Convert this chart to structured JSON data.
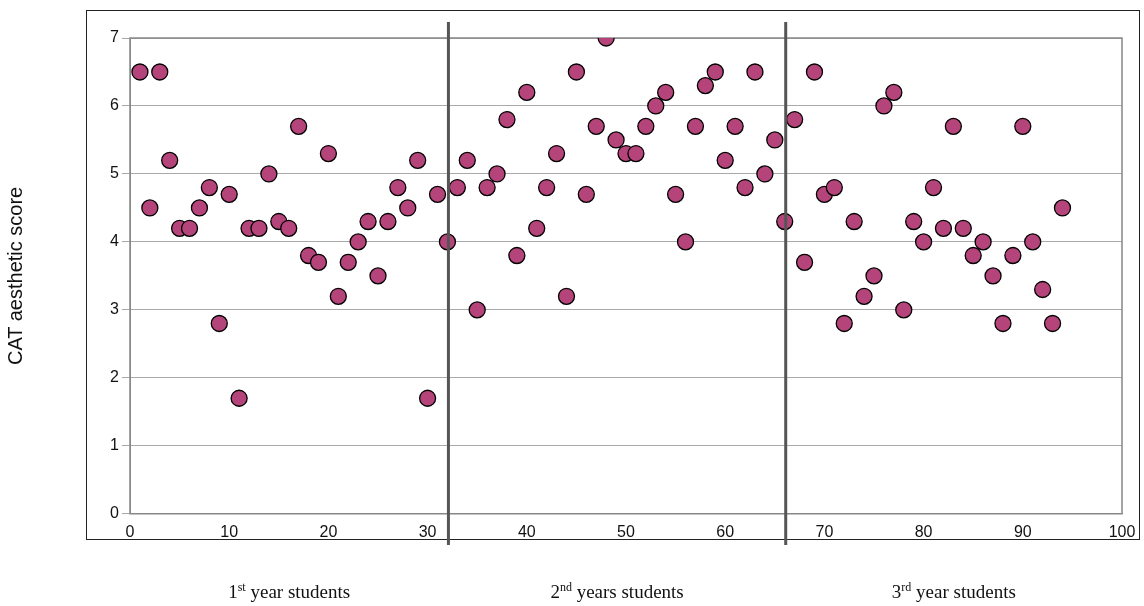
{
  "chart_data": {
    "type": "scatter",
    "ylabel": "CAT aesthetic score",
    "x": [
      1,
      2,
      3,
      4,
      5,
      6,
      7,
      8,
      9,
      10,
      11,
      12,
      13,
      14,
      15,
      16,
      17,
      18,
      19,
      20,
      21,
      22,
      23,
      24,
      25,
      26,
      27,
      28,
      29,
      30,
      31,
      32,
      33,
      34,
      35,
      36,
      37,
      38,
      39,
      40,
      41,
      42,
      43,
      44,
      45,
      46,
      47,
      48,
      49,
      50,
      51,
      52,
      53,
      54,
      55,
      56,
      57,
      58,
      59,
      60,
      61,
      62,
      63,
      64,
      65,
      66,
      67,
      68,
      69,
      70,
      71,
      72,
      73,
      74,
      75,
      76,
      77,
      78,
      79,
      80,
      81,
      82,
      83,
      84,
      85,
      86,
      87,
      88,
      89,
      90,
      91,
      92,
      93,
      94
    ],
    "series": [
      {
        "color": "#b5447a",
        "values": [
          6.5,
          4.5,
          6.5,
          5.2,
          4.2,
          4.2,
          4.5,
          4.8,
          2.8,
          4.7,
          1.7,
          4.2,
          4.2,
          5.0,
          4.3,
          4.2,
          5.7,
          3.8,
          3.7,
          5.3,
          3.2,
          3.7,
          4.0,
          4.3,
          3.5,
          4.3,
          4.8,
          4.5,
          5.2,
          1.7,
          4.7,
          4.0,
          4.8,
          5.2,
          3.0,
          4.8,
          5.0,
          5.8,
          3.8,
          6.2,
          4.2,
          4.8,
          5.3,
          3.2,
          6.5,
          4.7,
          5.7,
          7.0,
          5.5,
          5.3,
          5.3,
          5.7,
          6.0,
          6.2,
          4.7,
          4.0,
          5.7,
          6.3,
          6.5,
          5.2,
          5.7,
          4.8,
          6.5,
          5.0,
          5.5,
          4.3,
          5.8,
          3.7,
          6.5,
          4.7,
          4.8,
          2.8,
          4.3,
          3.2,
          3.5,
          6.0,
          6.2,
          3.0,
          4.3,
          4.0,
          4.8,
          4.2,
          5.7,
          4.2,
          3.8,
          4.0,
          3.5,
          2.8,
          3.8,
          5.7,
          4.0,
          3.3,
          2.8,
          4.5
        ]
      }
    ],
    "xlim": [
      0,
      100
    ],
    "xticks": [
      0,
      10,
      20,
      30,
      40,
      50,
      60,
      70,
      80,
      90,
      100
    ],
    "ylim": [
      0,
      7
    ],
    "yticks": [
      0,
      1,
      2,
      3,
      4,
      5,
      6,
      7
    ],
    "grid": "y",
    "marker": "circle",
    "legend": false,
    "ref_lines": [
      {
        "axis": "x",
        "value": 32.1,
        "color": "#555555"
      },
      {
        "axis": "x",
        "value": 66.1,
        "color": "#555555"
      }
    ],
    "annotations": [
      "1$^{st}$ year students",
      "2$^{nd}$ years students",
      "3$^{rd}$ year students"
    ]
  }
}
